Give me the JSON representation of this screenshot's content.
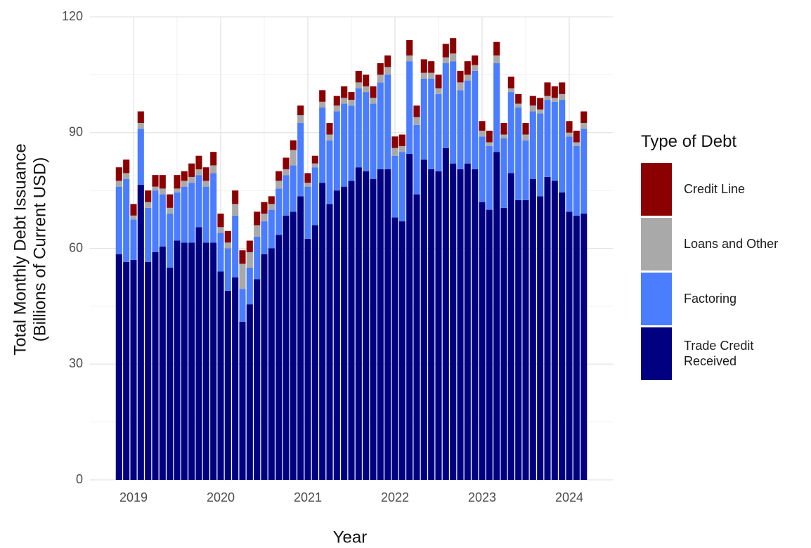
{
  "chart_data": {
    "type": "stacked-bar",
    "xlabel": "Year",
    "ylabel": [
      "Total Monthly Debt Issuance",
      "(Billions of Current USD)"
    ],
    "legend_title": "Type of Debt",
    "legend_position": "right",
    "grid": true,
    "xlim": [
      2018.5,
      2024.5
    ],
    "xticks": [
      2019,
      2020,
      2021,
      2022,
      2023,
      2024
    ],
    "ylim": [
      0,
      120
    ],
    "yticks": [
      0,
      30,
      60,
      90,
      120
    ],
    "x": [
      2018.833,
      2018.917,
      2019.0,
      2019.083,
      2019.167,
      2019.25,
      2019.333,
      2019.417,
      2019.5,
      2019.583,
      2019.667,
      2019.75,
      2019.833,
      2019.917,
      2020.0,
      2020.083,
      2020.167,
      2020.25,
      2020.333,
      2020.417,
      2020.5,
      2020.583,
      2020.667,
      2020.75,
      2020.833,
      2020.917,
      2021.0,
      2021.083,
      2021.167,
      2021.25,
      2021.333,
      2021.417,
      2021.5,
      2021.583,
      2021.667,
      2021.75,
      2021.833,
      2021.917,
      2022.0,
      2022.083,
      2022.167,
      2022.25,
      2022.333,
      2022.417,
      2022.5,
      2022.583,
      2022.667,
      2022.75,
      2022.833,
      2022.917,
      2023.0,
      2023.083,
      2023.167,
      2023.25,
      2023.333,
      2023.417,
      2023.5,
      2023.583,
      2023.667,
      2023.75,
      2023.833,
      2023.917,
      2024.0,
      2024.083,
      2024.167
    ],
    "series": [
      {
        "name": "Trade Credit Received",
        "color": "#000080",
        "values": [
          58.5,
          56.5,
          57,
          76.5,
          56.5,
          59,
          60.5,
          55,
          62,
          61.5,
          61.5,
          65.5,
          61.5,
          61.5,
          54,
          49,
          52.5,
          41,
          45.5,
          52,
          58.5,
          60,
          63.5,
          68.5,
          69.5,
          73.5,
          62.5,
          66,
          77,
          71.5,
          75,
          76,
          77.5,
          81,
          80,
          78,
          80.5,
          80.5,
          68,
          67,
          84.5,
          74,
          83,
          80.5,
          80,
          86,
          82,
          80.5,
          82,
          80.5,
          72,
          70,
          85,
          70.5,
          79.5,
          72.5,
          72.5,
          78,
          73.5,
          78.5,
          77.5,
          74.5,
          69.5,
          68.5,
          69
        ]
      },
      {
        "name": "Factoring",
        "color": "#4a7dff",
        "values": [
          17.5,
          21.5,
          10.5,
          14.5,
          14,
          16,
          13.5,
          14,
          12.5,
          14.5,
          15.5,
          13.5,
          14.5,
          18,
          10,
          11,
          16,
          8.5,
          9.5,
          11,
          8.5,
          10,
          12,
          10.5,
          12,
          19,
          13.5,
          15,
          19.5,
          16.5,
          20.5,
          21.5,
          19.5,
          20.5,
          20.5,
          19.5,
          22.5,
          24.5,
          16,
          18,
          24,
          18,
          21,
          23.5,
          20,
          22,
          26.5,
          20.5,
          21.5,
          25.5,
          17,
          16.5,
          23,
          18,
          21,
          24,
          15.5,
          17.5,
          21.5,
          20,
          20.5,
          24,
          19.5,
          18,
          22
        ]
      },
      {
        "name": "Loans and Other",
        "color": "#a9a9a9",
        "values": [
          1.5,
          1.5,
          1,
          1.5,
          1.5,
          1,
          1.5,
          1.5,
          1,
          1.5,
          1.5,
          1.5,
          1.5,
          2,
          1.5,
          1.5,
          3,
          6.5,
          4,
          3,
          2,
          1.5,
          2,
          1.5,
          4,
          2,
          1,
          1,
          1.5,
          1.5,
          1.5,
          1.5,
          1.5,
          1.5,
          1.5,
          1.5,
          2,
          2,
          2,
          1.5,
          1.5,
          2,
          1.5,
          1.5,
          1.5,
          1.5,
          2,
          2,
          1.5,
          1.5,
          1.5,
          1,
          2,
          1,
          1,
          1,
          1.5,
          1.5,
          1,
          1,
          1,
          1.5,
          1,
          1,
          1.5
        ]
      },
      {
        "name": "Credit Line",
        "color": "#8b0000",
        "values": [
          3.5,
          3.5,
          3,
          3,
          3,
          3,
          3.5,
          3.5,
          3.5,
          2.5,
          3.5,
          3.5,
          3.5,
          3.5,
          3.5,
          3,
          3.5,
          3.5,
          3,
          3.5,
          3,
          2,
          2.5,
          3,
          2.5,
          2.5,
          2.5,
          2,
          3,
          3,
          2.5,
          3,
          2,
          3,
          3,
          3,
          3,
          3,
          3,
          3,
          4,
          3,
          3.5,
          3,
          3.5,
          3.5,
          4,
          3,
          3.5,
          2.5,
          2.5,
          3,
          3.5,
          3,
          3,
          2.5,
          3,
          2.5,
          3,
          3.5,
          3,
          3,
          3,
          3,
          3
        ]
      }
    ]
  }
}
